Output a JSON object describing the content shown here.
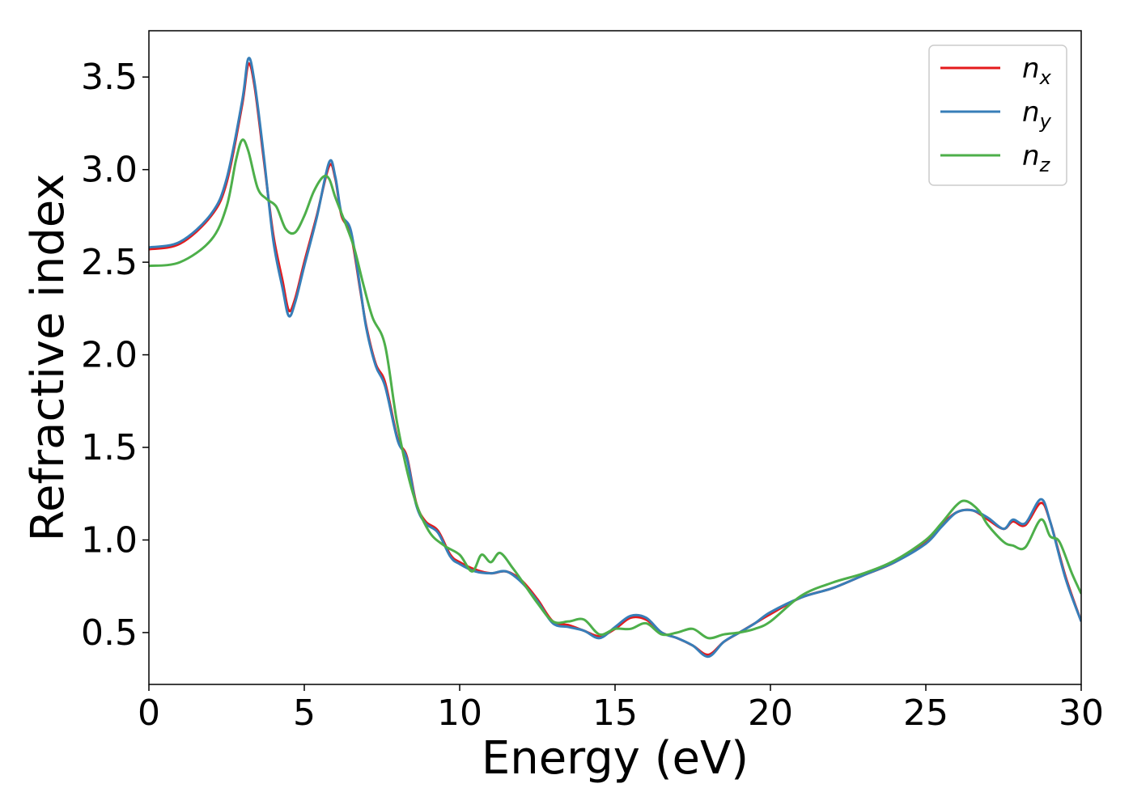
{
  "chart_data": {
    "type": "line",
    "xlabel": "Energy (eV)",
    "ylabel": "Refractive index",
    "xlim": [
      0,
      30
    ],
    "ylim": [
      0.22,
      3.75
    ],
    "xticks": [
      0,
      5,
      10,
      15,
      20,
      25,
      30
    ],
    "xtick_labels": [
      "0",
      "5",
      "10",
      "15",
      "20",
      "25",
      "30"
    ],
    "yticks": [
      0.5,
      1.0,
      1.5,
      2.0,
      2.5,
      3.0,
      3.5
    ],
    "ytick_labels": [
      "0.5",
      "1.0",
      "1.5",
      "2.0",
      "2.5",
      "3.0",
      "3.5"
    ],
    "grid": false,
    "legend_position": "top-right",
    "series": [
      {
        "name": "n_x",
        "legend_base": "n",
        "legend_sub": "x",
        "color": "#e41a1c",
        "points": [
          [
            0,
            2.57
          ],
          [
            1,
            2.6
          ],
          [
            2,
            2.75
          ],
          [
            2.5,
            2.93
          ],
          [
            3,
            3.35
          ],
          [
            3.2,
            3.57
          ],
          [
            3.4,
            3.45
          ],
          [
            3.7,
            3.05
          ],
          [
            4.0,
            2.65
          ],
          [
            4.3,
            2.4
          ],
          [
            4.5,
            2.24
          ],
          [
            4.7,
            2.3
          ],
          [
            5.0,
            2.5
          ],
          [
            5.4,
            2.75
          ],
          [
            5.8,
            3.02
          ],
          [
            6.0,
            2.95
          ],
          [
            6.2,
            2.75
          ],
          [
            6.5,
            2.65
          ],
          [
            6.8,
            2.35
          ],
          [
            7.0,
            2.15
          ],
          [
            7.3,
            1.95
          ],
          [
            7.6,
            1.85
          ],
          [
            8.0,
            1.55
          ],
          [
            8.3,
            1.45
          ],
          [
            8.6,
            1.2
          ],
          [
            8.9,
            1.1
          ],
          [
            9.3,
            1.05
          ],
          [
            9.7,
            0.92
          ],
          [
            10.0,
            0.88
          ],
          [
            10.5,
            0.84
          ],
          [
            11.0,
            0.82
          ],
          [
            11.5,
            0.83
          ],
          [
            12.0,
            0.78
          ],
          [
            12.5,
            0.68
          ],
          [
            13.0,
            0.56
          ],
          [
            13.5,
            0.54
          ],
          [
            14.0,
            0.51
          ],
          [
            14.5,
            0.48
          ],
          [
            15.0,
            0.52
          ],
          [
            15.5,
            0.58
          ],
          [
            16.0,
            0.57
          ],
          [
            16.5,
            0.5
          ],
          [
            17.0,
            0.47
          ],
          [
            17.5,
            0.43
          ],
          [
            18.0,
            0.38
          ],
          [
            18.5,
            0.45
          ],
          [
            19.0,
            0.5
          ],
          [
            19.5,
            0.55
          ],
          [
            20.0,
            0.6
          ],
          [
            21.0,
            0.69
          ],
          [
            22.0,
            0.74
          ],
          [
            23.0,
            0.81
          ],
          [
            24.0,
            0.88
          ],
          [
            25.0,
            0.99
          ],
          [
            25.5,
            1.08
          ],
          [
            26.0,
            1.15
          ],
          [
            26.5,
            1.16
          ],
          [
            27.0,
            1.11
          ],
          [
            27.5,
            1.06
          ],
          [
            27.8,
            1.1
          ],
          [
            28.2,
            1.08
          ],
          [
            28.7,
            1.2
          ],
          [
            29.0,
            1.1
          ],
          [
            29.5,
            0.8
          ],
          [
            30.0,
            0.56
          ]
        ]
      },
      {
        "name": "n_y",
        "legend_base": "n",
        "legend_sub": "y",
        "color": "#377eb8",
        "points": [
          [
            0,
            2.58
          ],
          [
            1,
            2.61
          ],
          [
            2,
            2.76
          ],
          [
            2.5,
            2.95
          ],
          [
            3,
            3.37
          ],
          [
            3.2,
            3.6
          ],
          [
            3.4,
            3.47
          ],
          [
            3.7,
            3.07
          ],
          [
            4.0,
            2.62
          ],
          [
            4.3,
            2.36
          ],
          [
            4.5,
            2.21
          ],
          [
            4.7,
            2.28
          ],
          [
            5.0,
            2.48
          ],
          [
            5.4,
            2.74
          ],
          [
            5.8,
            3.04
          ],
          [
            6.0,
            2.96
          ],
          [
            6.2,
            2.76
          ],
          [
            6.5,
            2.67
          ],
          [
            6.8,
            2.36
          ],
          [
            7.0,
            2.14
          ],
          [
            7.3,
            1.94
          ],
          [
            7.6,
            1.83
          ],
          [
            8.0,
            1.54
          ],
          [
            8.3,
            1.44
          ],
          [
            8.6,
            1.19
          ],
          [
            8.9,
            1.09
          ],
          [
            9.3,
            1.04
          ],
          [
            9.7,
            0.91
          ],
          [
            10.0,
            0.87
          ],
          [
            10.5,
            0.83
          ],
          [
            11.0,
            0.82
          ],
          [
            11.5,
            0.83
          ],
          [
            12.0,
            0.77
          ],
          [
            12.5,
            0.67
          ],
          [
            13.0,
            0.55
          ],
          [
            13.5,
            0.53
          ],
          [
            14.0,
            0.51
          ],
          [
            14.5,
            0.47
          ],
          [
            15.0,
            0.53
          ],
          [
            15.5,
            0.59
          ],
          [
            16.0,
            0.58
          ],
          [
            16.5,
            0.5
          ],
          [
            17.0,
            0.47
          ],
          [
            17.5,
            0.43
          ],
          [
            18.0,
            0.37
          ],
          [
            18.5,
            0.45
          ],
          [
            19.0,
            0.5
          ],
          [
            19.5,
            0.55
          ],
          [
            20.0,
            0.61
          ],
          [
            21.0,
            0.69
          ],
          [
            22.0,
            0.74
          ],
          [
            23.0,
            0.81
          ],
          [
            24.0,
            0.88
          ],
          [
            25.0,
            0.98
          ],
          [
            25.5,
            1.07
          ],
          [
            26.0,
            1.15
          ],
          [
            26.5,
            1.16
          ],
          [
            27.0,
            1.12
          ],
          [
            27.5,
            1.06
          ],
          [
            27.8,
            1.11
          ],
          [
            28.2,
            1.09
          ],
          [
            28.7,
            1.22
          ],
          [
            29.0,
            1.1
          ],
          [
            29.5,
            0.79
          ],
          [
            30.0,
            0.56
          ]
        ]
      },
      {
        "name": "n_z",
        "legend_base": "n",
        "legend_sub": "z",
        "color": "#4daf4a",
        "points": [
          [
            0,
            2.48
          ],
          [
            1,
            2.5
          ],
          [
            2,
            2.62
          ],
          [
            2.5,
            2.8
          ],
          [
            2.8,
            3.05
          ],
          [
            3.0,
            3.16
          ],
          [
            3.2,
            3.1
          ],
          [
            3.5,
            2.9
          ],
          [
            3.8,
            2.84
          ],
          [
            4.1,
            2.8
          ],
          [
            4.4,
            2.68
          ],
          [
            4.7,
            2.66
          ],
          [
            5.0,
            2.75
          ],
          [
            5.3,
            2.88
          ],
          [
            5.6,
            2.96
          ],
          [
            5.8,
            2.95
          ],
          [
            6.0,
            2.85
          ],
          [
            6.3,
            2.72
          ],
          [
            6.6,
            2.58
          ],
          [
            6.9,
            2.38
          ],
          [
            7.2,
            2.2
          ],
          [
            7.6,
            2.05
          ],
          [
            8.0,
            1.62
          ],
          [
            8.5,
            1.25
          ],
          [
            9.0,
            1.05
          ],
          [
            9.5,
            0.97
          ],
          [
            10.0,
            0.92
          ],
          [
            10.4,
            0.83
          ],
          [
            10.7,
            0.92
          ],
          [
            11.0,
            0.88
          ],
          [
            11.3,
            0.93
          ],
          [
            11.7,
            0.85
          ],
          [
            12.0,
            0.78
          ],
          [
            12.5,
            0.66
          ],
          [
            13.0,
            0.56
          ],
          [
            13.5,
            0.56
          ],
          [
            14.0,
            0.57
          ],
          [
            14.5,
            0.49
          ],
          [
            15.0,
            0.52
          ],
          [
            15.5,
            0.52
          ],
          [
            16.0,
            0.55
          ],
          [
            16.5,
            0.49
          ],
          [
            17.0,
            0.5
          ],
          [
            17.5,
            0.52
          ],
          [
            18.0,
            0.47
          ],
          [
            18.5,
            0.49
          ],
          [
            19.0,
            0.5
          ],
          [
            19.5,
            0.52
          ],
          [
            20.0,
            0.56
          ],
          [
            21.0,
            0.7
          ],
          [
            22.0,
            0.77
          ],
          [
            23.0,
            0.82
          ],
          [
            24.0,
            0.89
          ],
          [
            25.0,
            1.0
          ],
          [
            25.5,
            1.09
          ],
          [
            26.0,
            1.19
          ],
          [
            26.3,
            1.21
          ],
          [
            26.7,
            1.16
          ],
          [
            27.0,
            1.08
          ],
          [
            27.5,
            0.99
          ],
          [
            27.8,
            0.97
          ],
          [
            28.2,
            0.96
          ],
          [
            28.7,
            1.11
          ],
          [
            29.0,
            1.02
          ],
          [
            29.3,
            0.99
          ],
          [
            29.7,
            0.82
          ],
          [
            30.0,
            0.71
          ]
        ]
      }
    ]
  }
}
